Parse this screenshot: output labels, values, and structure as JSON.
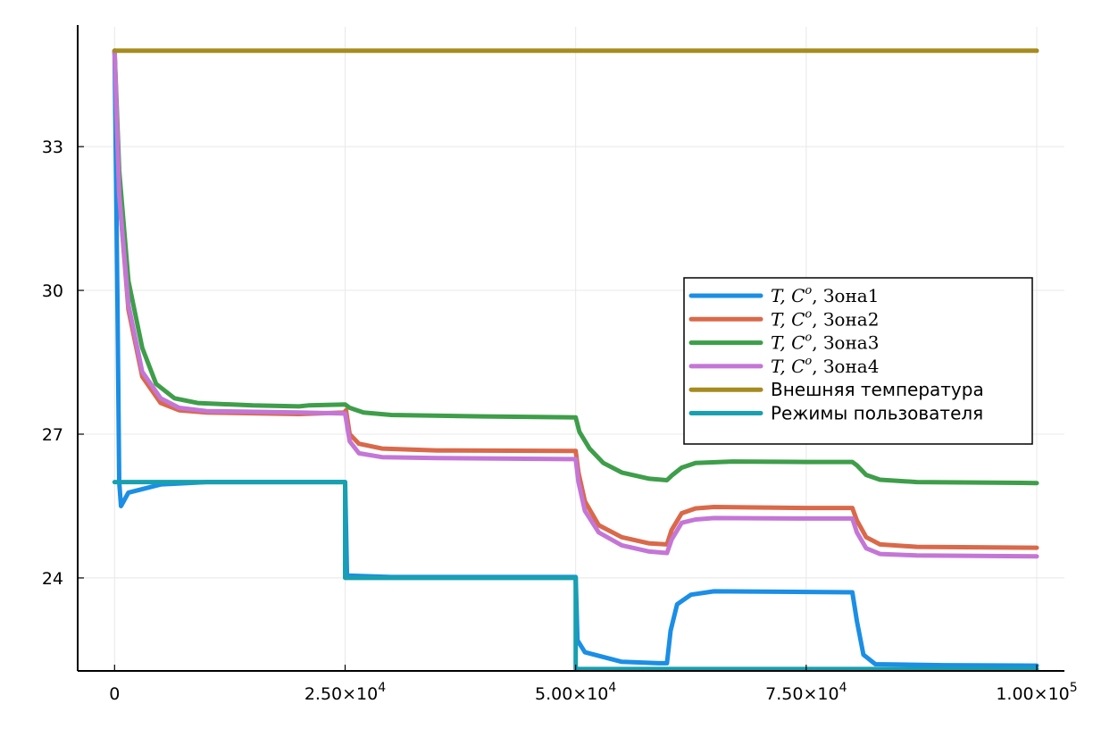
{
  "chart_data": {
    "type": "line",
    "title": "",
    "xlabel": "",
    "ylabel": "",
    "xlim": [
      -4000,
      103000
    ],
    "ylim": [
      22.06,
      35.5
    ],
    "grid": true,
    "legend_position": "right",
    "x_ticks": [
      {
        "value": 0,
        "label": "0"
      },
      {
        "value": 25000,
        "mantissa": "2.50",
        "exponent": "4"
      },
      {
        "value": 50000,
        "mantissa": "5.00",
        "exponent": "4"
      },
      {
        "value": 75000,
        "mantissa": "7.50",
        "exponent": "4"
      },
      {
        "value": 100000,
        "mantissa": "1.00",
        "exponent": "5"
      }
    ],
    "times_sign": "×",
    "tick_base": "10",
    "y_ticks": [
      {
        "value": 24,
        "label": "24"
      },
      {
        "value": 27,
        "label": "27"
      },
      {
        "value": 30,
        "label": "30"
      },
      {
        "value": 33,
        "label": "33"
      }
    ],
    "series": [
      {
        "name": "T, C^o, Зона1",
        "label_math": "T, C",
        "label_sup": "o",
        "label_rest": ", Зона1",
        "color": "#1b8ee6",
        "points": [
          [
            0,
            35
          ],
          [
            300,
            30
          ],
          [
            500,
            26
          ],
          [
            700,
            25.5
          ],
          [
            1500,
            25.78
          ],
          [
            5000,
            25.95
          ],
          [
            10000,
            26
          ],
          [
            25000,
            26
          ],
          [
            25200,
            24.05
          ],
          [
            30000,
            24.02
          ],
          [
            50000,
            24.02
          ],
          [
            50200,
            22.7
          ],
          [
            51000,
            22.45
          ],
          [
            55000,
            22.25
          ],
          [
            59000,
            22.22
          ],
          [
            59900,
            22.22
          ],
          [
            60300,
            22.9
          ],
          [
            61000,
            23.45
          ],
          [
            62500,
            23.65
          ],
          [
            65000,
            23.72
          ],
          [
            80000,
            23.7
          ],
          [
            80500,
            23.1
          ],
          [
            81200,
            22.4
          ],
          [
            82500,
            22.2
          ],
          [
            90000,
            22.18
          ],
          [
            100000,
            22.17
          ]
        ]
      },
      {
        "name": "T, C^o, Зона2",
        "label_math": "T, C",
        "label_sup": "o",
        "label_rest": ", Зона2",
        "color": "#d9694a",
        "points": [
          [
            0,
            35
          ],
          [
            500,
            32
          ],
          [
            1500,
            29.6
          ],
          [
            3000,
            28.2
          ],
          [
            5000,
            27.65
          ],
          [
            7000,
            27.5
          ],
          [
            10000,
            27.45
          ],
          [
            20000,
            27.42
          ],
          [
            24900,
            27.45
          ],
          [
            25100,
            27.5
          ],
          [
            25500,
            27
          ],
          [
            26500,
            26.8
          ],
          [
            29000,
            26.7
          ],
          [
            35000,
            26.66
          ],
          [
            50000,
            26.65
          ],
          [
            50300,
            26.2
          ],
          [
            51000,
            25.6
          ],
          [
            52500,
            25.1
          ],
          [
            55000,
            24.85
          ],
          [
            58000,
            24.72
          ],
          [
            59900,
            24.7
          ],
          [
            60400,
            25
          ],
          [
            61500,
            25.35
          ],
          [
            63000,
            25.45
          ],
          [
            65000,
            25.48
          ],
          [
            75000,
            25.46
          ],
          [
            80000,
            25.46
          ],
          [
            80500,
            25.2
          ],
          [
            81500,
            24.85
          ],
          [
            83000,
            24.7
          ],
          [
            87000,
            24.65
          ],
          [
            100000,
            24.63
          ]
        ]
      },
      {
        "name": "T, C^o, Зона3",
        "label_math": "T, C",
        "label_sup": "o",
        "label_rest": ", Зона3",
        "color": "#3e9e4a",
        "points": [
          [
            0,
            35
          ],
          [
            500,
            32.5
          ],
          [
            1500,
            30.2
          ],
          [
            3000,
            28.8
          ],
          [
            4500,
            28.05
          ],
          [
            6500,
            27.75
          ],
          [
            9000,
            27.65
          ],
          [
            15000,
            27.6
          ],
          [
            20000,
            27.58
          ],
          [
            21000,
            27.6
          ],
          [
            25000,
            27.62
          ],
          [
            25500,
            27.55
          ],
          [
            27000,
            27.45
          ],
          [
            30000,
            27.4
          ],
          [
            40000,
            27.37
          ],
          [
            50000,
            27.35
          ],
          [
            50400,
            27.05
          ],
          [
            51500,
            26.7
          ],
          [
            53000,
            26.4
          ],
          [
            55000,
            26.2
          ],
          [
            58000,
            26.07
          ],
          [
            59900,
            26.04
          ],
          [
            60500,
            26.15
          ],
          [
            61500,
            26.3
          ],
          [
            63000,
            26.4
          ],
          [
            67000,
            26.43
          ],
          [
            75000,
            26.42
          ],
          [
            80000,
            26.42
          ],
          [
            80500,
            26.35
          ],
          [
            81500,
            26.15
          ],
          [
            83000,
            26.05
          ],
          [
            87000,
            26
          ],
          [
            100000,
            25.98
          ]
        ]
      },
      {
        "name": "T, C^o, Зона4",
        "label_math": "T, C",
        "label_sup": "o",
        "label_rest": ", Зона4",
        "color": "#c476d6",
        "points": [
          [
            0,
            35
          ],
          [
            500,
            32
          ],
          [
            1500,
            29.7
          ],
          [
            3000,
            28.3
          ],
          [
            5000,
            27.75
          ],
          [
            7000,
            27.55
          ],
          [
            10000,
            27.48
          ],
          [
            20000,
            27.45
          ],
          [
            25000,
            27.43
          ],
          [
            25500,
            26.85
          ],
          [
            26500,
            26.6
          ],
          [
            29000,
            26.52
          ],
          [
            35000,
            26.5
          ],
          [
            50000,
            26.48
          ],
          [
            50300,
            26
          ],
          [
            51000,
            25.4
          ],
          [
            52500,
            24.95
          ],
          [
            55000,
            24.68
          ],
          [
            58000,
            24.55
          ],
          [
            59900,
            24.52
          ],
          [
            60400,
            24.8
          ],
          [
            61500,
            25.15
          ],
          [
            63000,
            25.22
          ],
          [
            65000,
            25.25
          ],
          [
            75000,
            25.24
          ],
          [
            80000,
            25.24
          ],
          [
            80500,
            24.95
          ],
          [
            81500,
            24.62
          ],
          [
            83000,
            24.5
          ],
          [
            87000,
            24.47
          ],
          [
            100000,
            24.45
          ]
        ]
      },
      {
        "name": "Внешняя температура",
        "color": "#a68b1f",
        "points": [
          [
            0,
            35
          ],
          [
            100000,
            35
          ]
        ]
      },
      {
        "name": "Режимы пользователя",
        "color": "#18a0b0",
        "points": [
          [
            0,
            26
          ],
          [
            25000,
            26
          ],
          [
            25000,
            24
          ],
          [
            50000,
            24
          ],
          [
            50000,
            22.1
          ],
          [
            100000,
            22.1
          ]
        ]
      }
    ]
  }
}
